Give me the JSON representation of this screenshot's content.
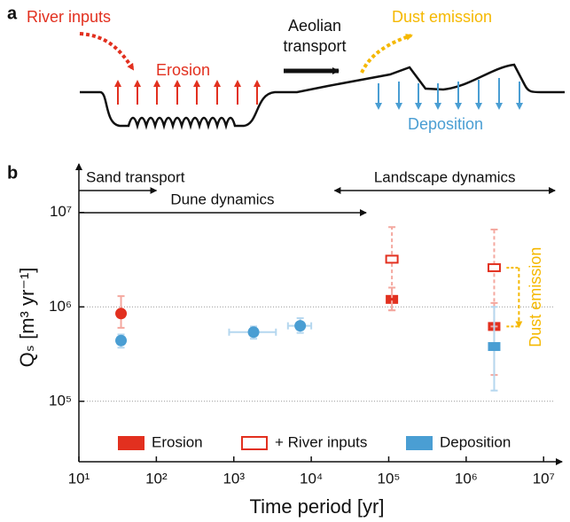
{
  "panel_a": {
    "label": "a",
    "river_inputs": "River inputs",
    "erosion": "Erosion",
    "aeolian": [
      "Aeolian",
      "transport"
    ],
    "dust_emission": "Dust emission",
    "deposition": "Deposition"
  },
  "chart_data": {
    "type": "scatter",
    "panel_label": "b",
    "x_label": "Time period [yr]",
    "y_label": "Qₛ [m³ yr⁻¹]",
    "xscale": "log",
    "yscale": "log",
    "xlim": [
      10,
      14000000
    ],
    "ylim": [
      22900,
      26300000
    ],
    "xticks": [
      {
        "value": 10,
        "label": "10¹"
      },
      {
        "value": 100,
        "label": "10²"
      },
      {
        "value": 1000,
        "label": "10³"
      },
      {
        "value": 10000,
        "label": "10⁴"
      },
      {
        "value": 100000,
        "label": "10⁵"
      },
      {
        "value": 1000000,
        "label": "10⁶"
      },
      {
        "value": 10000000,
        "label": "10⁷"
      }
    ],
    "yticks": [
      {
        "value": 100000,
        "label": "10⁵"
      },
      {
        "value": 1000000,
        "label": "10⁶"
      },
      {
        "value": 10000000,
        "label": "10⁷"
      }
    ],
    "grid_lines": [
      100000,
      1000000
    ],
    "series": [
      {
        "name": "Erosion",
        "color": "#e2301f",
        "error_color": "#f4a89f",
        "filled": true,
        "markers": [
          "circle",
          "square",
          "square"
        ],
        "x": [
          35,
          110000,
          2300000
        ],
        "values": [
          850000,
          1200000,
          620000
        ],
        "y_low": [
          600000,
          920000,
          190000
        ],
        "y_high": [
          1300000,
          1600000,
          1100000
        ]
      },
      {
        "name": "+ River inputs",
        "color": "#e2301f",
        "error_color": "#f4a89f",
        "filled": false,
        "dashed": true,
        "markers": [
          "square",
          "square"
        ],
        "x": [
          110000,
          2300000
        ],
        "values": [
          3200000,
          2600000
        ],
        "y_low": [
          920000,
          620000
        ],
        "y_high": [
          7000000,
          6600000
        ]
      },
      {
        "name": "Deposition",
        "color": "#4a9ed3",
        "error_color": "#b5d7ef",
        "filled": true,
        "markers": [
          "circle",
          "circle",
          "circle",
          "square"
        ],
        "x": [
          35,
          1800,
          7200,
          2300000
        ],
        "values": [
          440000,
          540000,
          630000,
          380000
        ],
        "y_low": [
          370000,
          460000,
          530000,
          130000
        ],
        "y_high": [
          510000,
          620000,
          760000,
          1000000
        ],
        "x_low": [
          null,
          870,
          5000,
          null
        ],
        "x_high": [
          null,
          3500,
          10000,
          null
        ]
      }
    ],
    "annotations": [
      {
        "text": "Sand transport",
        "x": [
          10,
          100
        ],
        "row": "upper",
        "arrow": "right"
      },
      {
        "text": "Dune dynamics",
        "x": [
          10,
          51000
        ],
        "row": "lower",
        "arrow": "right"
      },
      {
        "text": "Landscape dynamics",
        "x": [
          20000,
          14000000
        ],
        "row": "upper",
        "arrow": "both"
      },
      {
        "text": "Dust emission",
        "x": 4800000,
        "y": [
          2600000,
          620000
        ],
        "color": "#f5b800"
      }
    ]
  }
}
